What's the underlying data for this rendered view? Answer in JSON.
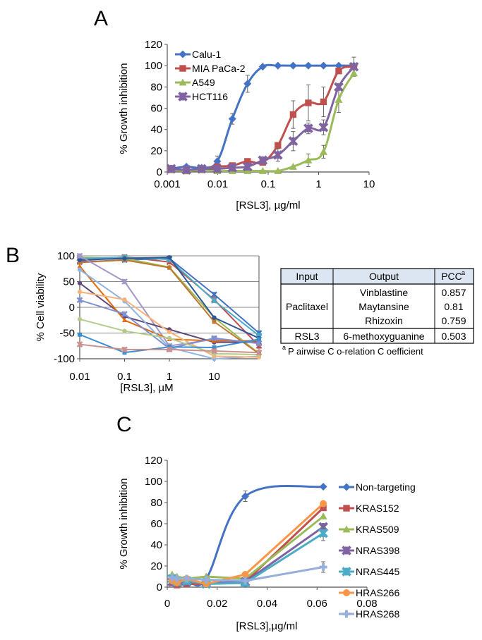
{
  "panels": {
    "A": "A",
    "B": "B",
    "C": "C"
  },
  "colors": {
    "blue": "#4472C4",
    "red": "#C0504D",
    "green": "#9BBB59",
    "purple": "#8064A2",
    "teal": "#4BACC6",
    "orange": "#F79646",
    "lightblue": "#95AEDC"
  },
  "table": {
    "headers": [
      "Input",
      "Output",
      "PCC"
    ],
    "header_sup": "a",
    "rows": [
      {
        "input": "Paclitaxel",
        "outputs": [
          "Vinblastine",
          "Maytansine",
          "Rhizoxin"
        ],
        "pcc": [
          "0.857",
          "0.81",
          "0.759"
        ]
      },
      {
        "input": "RSL3",
        "outputs": [
          "6-methoxyguanine"
        ],
        "pcc": [
          "0.503"
        ]
      }
    ],
    "footnote_sup": "a",
    "footnote": "P airwise C o-relation C oefficient"
  },
  "chart_data": [
    {
      "panel": "A",
      "type": "line",
      "xscale": "log",
      "xlabel": "[RSL3], µg/ml",
      "ylabel": "% Growth inhibition",
      "xlim": [
        0.001,
        10
      ],
      "ylim": [
        0,
        120
      ],
      "xticks": [
        "0.001",
        "0.01",
        "0.1",
        "1",
        "10"
      ],
      "yticks": [
        "0",
        "20",
        "40",
        "60",
        "80",
        "100",
        "120"
      ],
      "legend": "top-left",
      "smooth": true,
      "x": [
        0.0012,
        0.0024,
        0.0048,
        0.0098,
        0.0195,
        0.039,
        0.078,
        0.156,
        0.3125,
        0.625,
        1.25,
        2.5,
        5.0
      ],
      "series": [
        {
          "name": "Calu-1",
          "color": "#4472C4",
          "marker": "diamond",
          "values": [
            3,
            5,
            4,
            10,
            50,
            83,
            99,
            100,
            100,
            100,
            100,
            100,
            100
          ],
          "err": [
            0,
            0,
            0,
            5,
            5,
            8,
            0,
            0,
            0,
            0,
            0,
            0,
            0
          ]
        },
        {
          "name": "MIA PaCa-2",
          "color": "#C0504D",
          "marker": "square",
          "values": [
            2,
            1,
            2,
            5,
            6,
            10,
            9,
            25,
            54,
            65,
            66,
            95,
            99
          ],
          "err": [
            0,
            0,
            0,
            0,
            0,
            0,
            0,
            0,
            13,
            17,
            14,
            0,
            9
          ]
        },
        {
          "name": "A549",
          "color": "#9BBB59",
          "marker": "triangle",
          "values": [
            2,
            1,
            2,
            1,
            1,
            1,
            1,
            1,
            5,
            11,
            19,
            68,
            93
          ],
          "err": [
            0,
            0,
            0,
            0,
            0,
            0,
            0,
            0,
            0,
            6,
            6,
            12,
            0
          ]
        },
        {
          "name": "HCT116",
          "color": "#8064A2",
          "marker": "star",
          "values": [
            3,
            2,
            3,
            3,
            4,
            5,
            11,
            16,
            29,
            41,
            42,
            80,
            99
          ],
          "err": [
            0,
            0,
            0,
            0,
            0,
            0,
            3,
            6,
            9,
            5,
            7,
            0,
            0
          ]
        }
      ]
    },
    {
      "panel": "B",
      "type": "line",
      "xscale": "log",
      "xlabel": "[RSL3], µM",
      "ylabel": "% Cell viability",
      "xlim": [
        0.01,
        100
      ],
      "ylim": [
        -100,
        100
      ],
      "xticks": [
        "0.01",
        "0.1",
        "1",
        "10"
      ],
      "yticks": [
        "-100",
        "-50",
        "0",
        "50",
        "100"
      ],
      "grid": true,
      "x": [
        0.01,
        0.1,
        1,
        10,
        100
      ],
      "series": [
        {
          "color": "#C0504D",
          "marker": "star",
          "values": [
            90,
            98,
            88,
            15,
            -75
          ]
        },
        {
          "color": "#4472C4",
          "marker": "star",
          "values": [
            88,
            92,
            95,
            25,
            -50
          ]
        },
        {
          "color": "#9BBB59",
          "marker": "circle",
          "values": [
            97,
            95,
            78,
            -20,
            -90
          ]
        },
        {
          "color": "#C0782D",
          "marker": "square",
          "values": [
            87,
            92,
            77,
            -28,
            -90
          ]
        },
        {
          "color": "#4BACC6",
          "marker": "star",
          "values": [
            95,
            97,
            93,
            13,
            -55
          ]
        },
        {
          "color": "#2F5597",
          "marker": "circle",
          "values": [
            92,
            95,
            97,
            -20,
            -60
          ]
        },
        {
          "color": "#A596C8",
          "marker": "star",
          "values": [
            100,
            50,
            -75,
            -62,
            -70
          ]
        },
        {
          "color": "#604A7B",
          "marker": "circle",
          "values": [
            47,
            -18,
            -43,
            -68,
            -68
          ]
        },
        {
          "color": "#E46C0A",
          "marker": "triangle",
          "values": [
            80,
            -25,
            -62,
            -65,
            -65
          ]
        },
        {
          "color": "#8DB4E2",
          "marker": "circle",
          "values": [
            73,
            12,
            -78,
            -100,
            -95
          ]
        },
        {
          "color": "#FAB27A",
          "marker": "circle",
          "values": [
            30,
            15,
            -48,
            -95,
            -97
          ]
        },
        {
          "color": "#7F8FD0",
          "marker": "star",
          "values": [
            14,
            -13,
            -80,
            -60,
            -70
          ]
        },
        {
          "color": "#B3CC8A",
          "marker": "circle",
          "values": [
            -23,
            -46,
            -60,
            -90,
            -92
          ]
        },
        {
          "color": "#3B8ED0",
          "marker": "square",
          "values": [
            -53,
            -88,
            -77,
            -78,
            -62
          ]
        },
        {
          "color": "#C9908E",
          "marker": "star",
          "values": [
            -72,
            -82,
            -82,
            -85,
            -88
          ]
        }
      ]
    },
    {
      "panel": "C",
      "type": "line",
      "xscale": "linear",
      "xlabel": "[RSL3],µg/ml",
      "ylabel": "% Growth inhibition",
      "xlim": [
        0,
        0.08
      ],
      "ylim": [
        0,
        120
      ],
      "xticks": [
        "0",
        "0.02",
        "0.04",
        "0.06",
        "0.08"
      ],
      "yticks": [
        "0",
        "20",
        "40",
        "60",
        "80",
        "100",
        "120"
      ],
      "legend": "right",
      "x": [
        0.00195,
        0.0039,
        0.0078,
        0.0156,
        0.03125,
        0.0625
      ],
      "series": [
        {
          "name": "Non-targeting",
          "color": "#4472C4",
          "marker": "diamond",
          "smooth": true,
          "values": [
            8,
            5,
            7,
            8,
            86,
            95
          ],
          "err": [
            0,
            0,
            0,
            0,
            5,
            0
          ]
        },
        {
          "name": "KRAS152",
          "color": "#C0504D",
          "marker": "square",
          "values": [
            4,
            2,
            3,
            3,
            5,
            75
          ],
          "err": [
            0,
            0,
            0,
            0,
            0,
            0
          ]
        },
        {
          "name": "KRAS509",
          "color": "#9BBB59",
          "marker": "triangle",
          "values": [
            12,
            10,
            8,
            10,
            8,
            67
          ],
          "err": [
            0,
            0,
            0,
            0,
            0,
            0
          ]
        },
        {
          "name": "NRAS398",
          "color": "#8064A2",
          "marker": "star",
          "values": [
            5,
            4,
            5,
            4,
            5,
            57
          ],
          "err": [
            0,
            0,
            0,
            0,
            0,
            0
          ]
        },
        {
          "name": "NRAS445",
          "color": "#4BACC6",
          "marker": "star",
          "values": [
            8,
            5,
            6,
            3,
            4,
            51
          ],
          "err": [
            0,
            0,
            0,
            0,
            0,
            7
          ]
        },
        {
          "name": "HRAS266",
          "color": "#F79646",
          "marker": "circle",
          "values": [
            6,
            4,
            8,
            3,
            12,
            79
          ],
          "err": [
            0,
            0,
            0,
            0,
            0,
            0
          ]
        },
        {
          "name": "HRAS268",
          "color": "#95AEDC",
          "marker": "plus",
          "values": [
            9,
            8,
            8,
            7,
            6,
            19
          ],
          "err": [
            0,
            0,
            0,
            0,
            0,
            5
          ]
        }
      ]
    }
  ]
}
